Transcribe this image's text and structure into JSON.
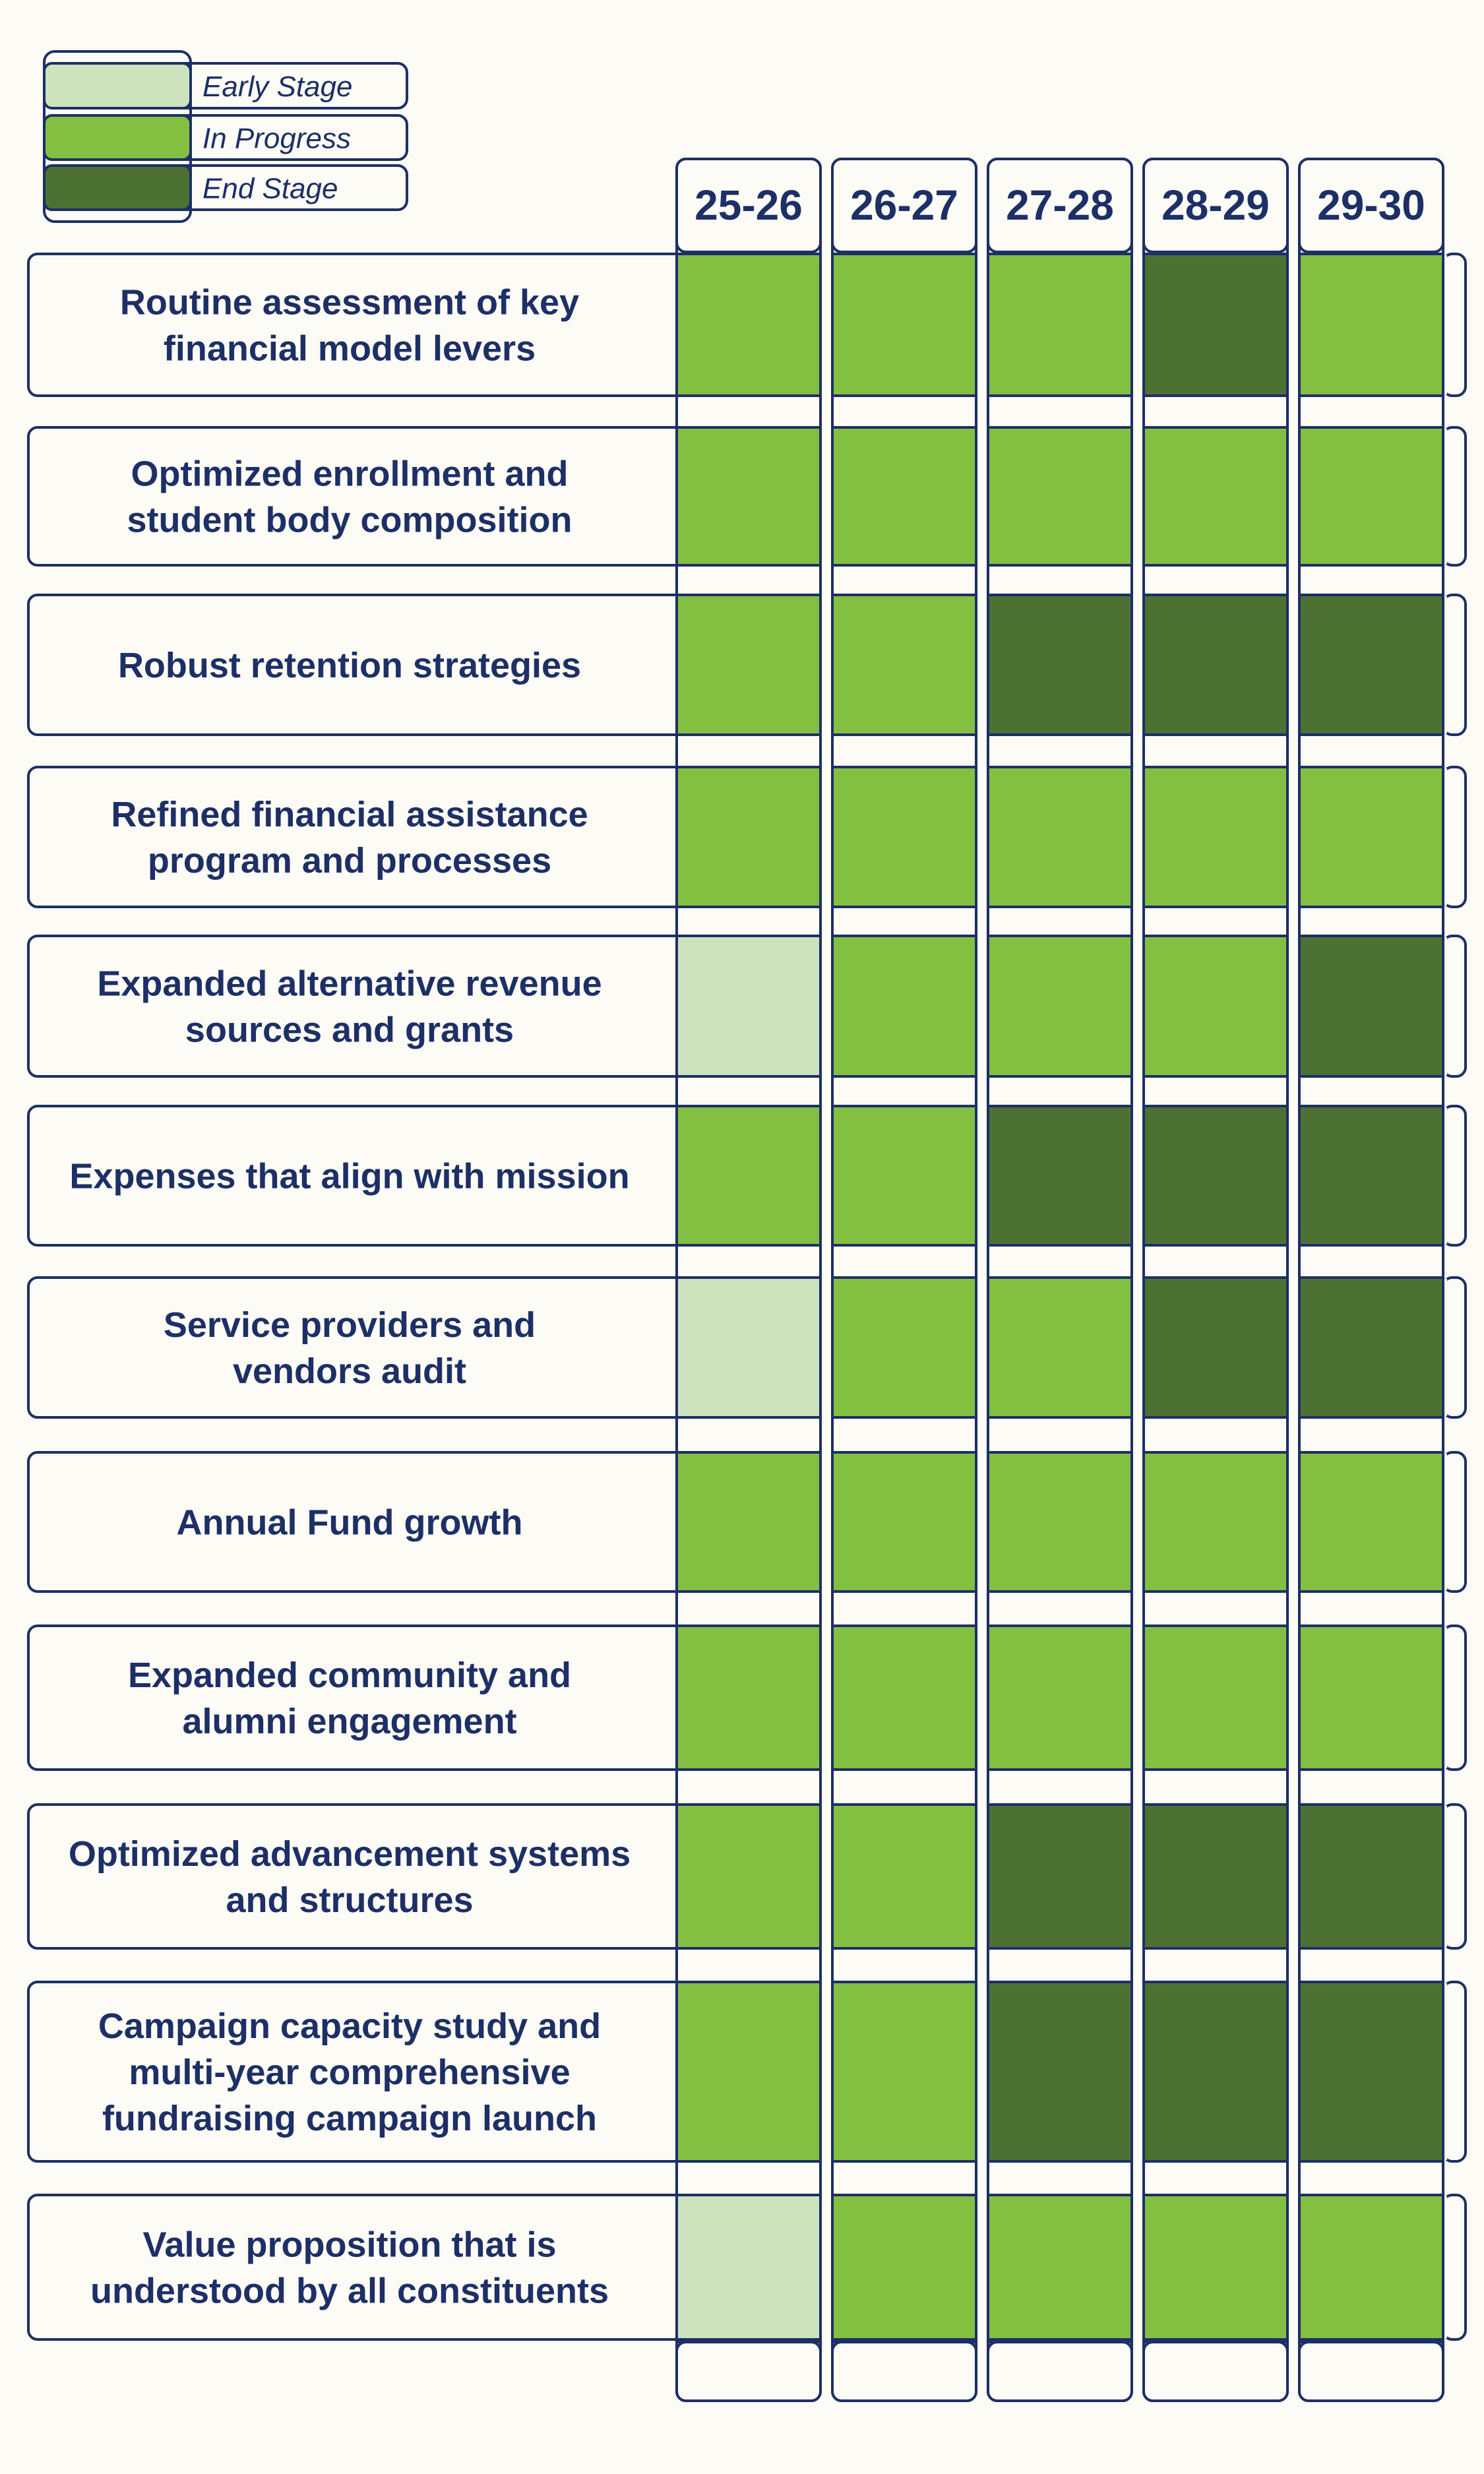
{
  "chart_data": {
    "type": "heatmap",
    "title": "",
    "legend": {
      "placement": "top-left",
      "items": [
        {
          "key": "early",
          "label": "Early Stage",
          "color": "#cde3bd"
        },
        {
          "key": "progress",
          "label": "In Progress",
          "color": "#83c041"
        },
        {
          "key": "end",
          "label": "End Stage",
          "color": "#4d7133"
        }
      ]
    },
    "columns": [
      "25-26",
      "26-27",
      "27-28",
      "28-29",
      "29-30"
    ],
    "rows": [
      {
        "lines": [
          "Routine assessment of key",
          "financial model levers"
        ],
        "stages": [
          "progress",
          "progress",
          "progress",
          "end",
          "progress"
        ]
      },
      {
        "lines": [
          "Optimized enrollment and",
          "student body composition"
        ],
        "stages": [
          "progress",
          "progress",
          "progress",
          "progress",
          "progress"
        ]
      },
      {
        "lines": [
          "Robust retention strategies"
        ],
        "stages": [
          "progress",
          "progress",
          "end",
          "end",
          "end"
        ]
      },
      {
        "lines": [
          "Refined financial assistance",
          "program and processes"
        ],
        "stages": [
          "progress",
          "progress",
          "progress",
          "progress",
          "progress"
        ]
      },
      {
        "lines": [
          "Expanded alternative revenue",
          "sources and grants"
        ],
        "stages": [
          "early",
          "progress",
          "progress",
          "progress",
          "end"
        ]
      },
      {
        "lines": [
          "Expenses that align with mission"
        ],
        "stages": [
          "progress",
          "progress",
          "end",
          "end",
          "end"
        ]
      },
      {
        "lines": [
          "Service providers and",
          "vendors audit"
        ],
        "stages": [
          "early",
          "progress",
          "progress",
          "end",
          "end"
        ]
      },
      {
        "lines": [
          "Annual Fund growth"
        ],
        "stages": [
          "progress",
          "progress",
          "progress",
          "progress",
          "progress"
        ]
      },
      {
        "lines": [
          "Expanded community and",
          "alumni engagement"
        ],
        "stages": [
          "progress",
          "progress",
          "progress",
          "progress",
          "progress"
        ]
      },
      {
        "lines": [
          "Optimized advancement systems",
          "and structures"
        ],
        "stages": [
          "progress",
          "progress",
          "end",
          "end",
          "end"
        ]
      },
      {
        "lines": [
          "Campaign capacity study and",
          "multi-year comprehensive",
          "fundraising campaign launch"
        ],
        "stages": [
          "progress",
          "progress",
          "end",
          "end",
          "end"
        ]
      },
      {
        "lines": [
          "Value proposition that is",
          "understood by all constituents"
        ],
        "stages": [
          "early",
          "progress",
          "progress",
          "progress",
          "progress"
        ]
      }
    ],
    "colors": {
      "outline": "#1d2f66",
      "text": "#1d2f66",
      "background": "#fcfbf5"
    }
  }
}
